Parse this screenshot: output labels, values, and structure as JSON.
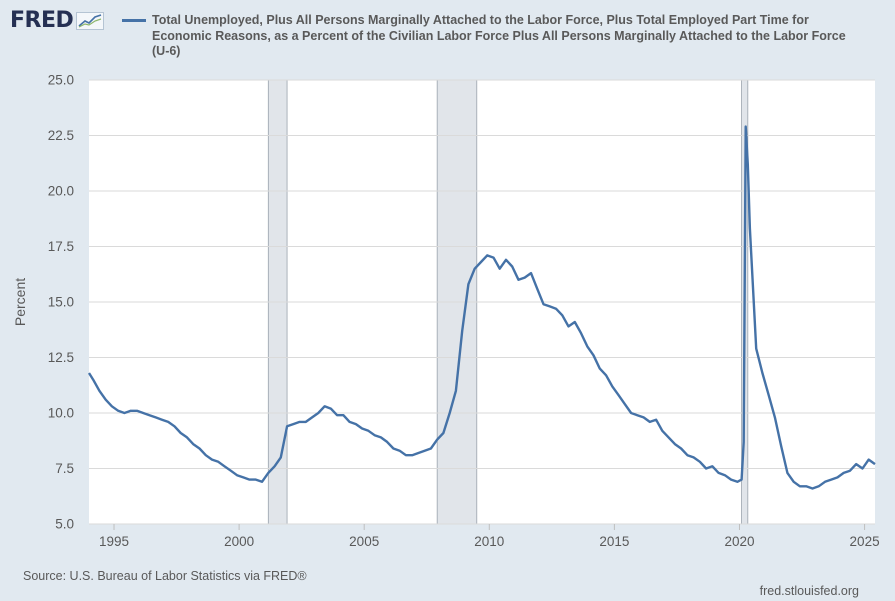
{
  "header": {
    "logo_text": "FRED",
    "logo_icon": "trend-line-icon"
  },
  "footer": {
    "source": "Source: U.S. Bureau of Labor Statistics via FRED®",
    "site": "fred.stlouisfed.org"
  },
  "colors": {
    "series": "#4572a7",
    "plot_bg": "#ffffff",
    "page_bg": "#e1e9f0",
    "recession": "#e1e5ea",
    "grid": "#dadada",
    "text": "#595959"
  },
  "chart_data": {
    "type": "line",
    "title": "",
    "xlabel": "",
    "ylabel": "Percent",
    "ylim": [
      5.0,
      25.0
    ],
    "xlim": [
      "1994-01",
      "2025-06"
    ],
    "y_ticks": [
      "5.0",
      "7.5",
      "10.0",
      "12.5",
      "15.0",
      "17.5",
      "20.0",
      "22.5",
      "25.0"
    ],
    "x_ticks": [
      "1995",
      "2000",
      "2005",
      "2010",
      "2015",
      "2020",
      "2025"
    ],
    "grid": true,
    "legend_position": "top",
    "recessions": [
      {
        "start": "2001-03",
        "end": "2001-11"
      },
      {
        "start": "2007-12",
        "end": "2009-06"
      },
      {
        "start": "2020-02",
        "end": "2020-04"
      }
    ],
    "series": [
      {
        "name": "Total Unemployed, Plus All Persons Marginally Attached to the Labor Force, Plus Total Employed Part Time for Economic Reasons, as a Percent of the Civilian Labor Force Plus All Persons Marginally Attached to the Labor Force (U-6)",
        "points": [
          [
            "1994-01",
            11.8
          ],
          [
            "1994-03",
            11.5
          ],
          [
            "1994-06",
            11.0
          ],
          [
            "1994-09",
            10.6
          ],
          [
            "1994-12",
            10.3
          ],
          [
            "1995-03",
            10.1
          ],
          [
            "1995-06",
            10.0
          ],
          [
            "1995-09",
            10.1
          ],
          [
            "1995-12",
            10.1
          ],
          [
            "1996-03",
            10.0
          ],
          [
            "1996-06",
            9.9
          ],
          [
            "1996-09",
            9.8
          ],
          [
            "1996-12",
            9.7
          ],
          [
            "1997-03",
            9.6
          ],
          [
            "1997-06",
            9.4
          ],
          [
            "1997-09",
            9.1
          ],
          [
            "1997-12",
            8.9
          ],
          [
            "1998-03",
            8.6
          ],
          [
            "1998-06",
            8.4
          ],
          [
            "1998-09",
            8.1
          ],
          [
            "1998-12",
            7.9
          ],
          [
            "1999-03",
            7.8
          ],
          [
            "1999-06",
            7.6
          ],
          [
            "1999-09",
            7.4
          ],
          [
            "1999-12",
            7.2
          ],
          [
            "2000-03",
            7.1
          ],
          [
            "2000-06",
            7.0
          ],
          [
            "2000-09",
            7.0
          ],
          [
            "2000-12",
            6.9
          ],
          [
            "2001-03",
            7.3
          ],
          [
            "2001-06",
            7.6
          ],
          [
            "2001-09",
            8.0
          ],
          [
            "2001-12",
            9.4
          ],
          [
            "2002-03",
            9.5
          ],
          [
            "2002-06",
            9.6
          ],
          [
            "2002-09",
            9.6
          ],
          [
            "2002-12",
            9.8
          ],
          [
            "2003-03",
            10.0
          ],
          [
            "2003-06",
            10.3
          ],
          [
            "2003-09",
            10.2
          ],
          [
            "2003-12",
            9.9
          ],
          [
            "2004-03",
            9.9
          ],
          [
            "2004-06",
            9.6
          ],
          [
            "2004-09",
            9.5
          ],
          [
            "2004-12",
            9.3
          ],
          [
            "2005-03",
            9.2
          ],
          [
            "2005-06",
            9.0
          ],
          [
            "2005-09",
            8.9
          ],
          [
            "2005-12",
            8.7
          ],
          [
            "2006-03",
            8.4
          ],
          [
            "2006-06",
            8.3
          ],
          [
            "2006-09",
            8.1
          ],
          [
            "2006-12",
            8.1
          ],
          [
            "2007-03",
            8.2
          ],
          [
            "2007-06",
            8.3
          ],
          [
            "2007-09",
            8.4
          ],
          [
            "2007-12",
            8.8
          ],
          [
            "2008-03",
            9.1
          ],
          [
            "2008-06",
            10.0
          ],
          [
            "2008-09",
            11.0
          ],
          [
            "2008-12",
            13.7
          ],
          [
            "2009-03",
            15.8
          ],
          [
            "2009-06",
            16.5
          ],
          [
            "2009-09",
            16.8
          ],
          [
            "2009-12",
            17.1
          ],
          [
            "2010-03",
            17.0
          ],
          [
            "2010-06",
            16.5
          ],
          [
            "2010-09",
            16.9
          ],
          [
            "2010-12",
            16.6
          ],
          [
            "2011-03",
            16.0
          ],
          [
            "2011-06",
            16.1
          ],
          [
            "2011-09",
            16.3
          ],
          [
            "2011-12",
            15.6
          ],
          [
            "2012-03",
            14.9
          ],
          [
            "2012-06",
            14.8
          ],
          [
            "2012-09",
            14.7
          ],
          [
            "2012-12",
            14.4
          ],
          [
            "2013-03",
            13.9
          ],
          [
            "2013-06",
            14.1
          ],
          [
            "2013-09",
            13.6
          ],
          [
            "2013-12",
            13.0
          ],
          [
            "2014-03",
            12.6
          ],
          [
            "2014-06",
            12.0
          ],
          [
            "2014-09",
            11.7
          ],
          [
            "2014-12",
            11.2
          ],
          [
            "2015-03",
            10.8
          ],
          [
            "2015-06",
            10.4
          ],
          [
            "2015-09",
            10.0
          ],
          [
            "2015-12",
            9.9
          ],
          [
            "2016-03",
            9.8
          ],
          [
            "2016-06",
            9.6
          ],
          [
            "2016-09",
            9.7
          ],
          [
            "2016-12",
            9.2
          ],
          [
            "2017-03",
            8.9
          ],
          [
            "2017-06",
            8.6
          ],
          [
            "2017-09",
            8.4
          ],
          [
            "2017-12",
            8.1
          ],
          [
            "2018-03",
            8.0
          ],
          [
            "2018-06",
            7.8
          ],
          [
            "2018-09",
            7.5
          ],
          [
            "2018-12",
            7.6
          ],
          [
            "2019-03",
            7.3
          ],
          [
            "2019-06",
            7.2
          ],
          [
            "2019-09",
            7.0
          ],
          [
            "2019-12",
            6.9
          ],
          [
            "2020-02",
            7.0
          ],
          [
            "2020-03",
            8.7
          ],
          [
            "2020-04",
            22.9
          ],
          [
            "2020-05",
            21.2
          ],
          [
            "2020-06",
            18.3
          ],
          [
            "2020-07",
            16.5
          ],
          [
            "2020-09",
            12.9
          ],
          [
            "2020-12",
            11.8
          ],
          [
            "2021-03",
            10.8
          ],
          [
            "2021-06",
            9.8
          ],
          [
            "2021-09",
            8.5
          ],
          [
            "2021-12",
            7.3
          ],
          [
            "2022-03",
            6.9
          ],
          [
            "2022-06",
            6.7
          ],
          [
            "2022-09",
            6.7
          ],
          [
            "2022-12",
            6.6
          ],
          [
            "2023-03",
            6.7
          ],
          [
            "2023-06",
            6.9
          ],
          [
            "2023-09",
            7.0
          ],
          [
            "2023-12",
            7.1
          ],
          [
            "2024-03",
            7.3
          ],
          [
            "2024-06",
            7.4
          ],
          [
            "2024-09",
            7.7
          ],
          [
            "2024-12",
            7.5
          ],
          [
            "2025-03",
            7.9
          ],
          [
            "2025-06",
            7.7
          ]
        ]
      }
    ]
  }
}
